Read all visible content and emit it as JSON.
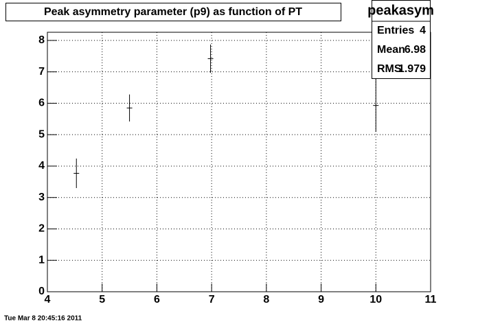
{
  "chart_data": {
    "type": "errorbar",
    "title": "Peak asymmetry parameter (p9) as function of PT",
    "x": [
      4.53,
      5.5,
      6.98,
      10.0
    ],
    "values": [
      3.77,
      5.85,
      7.42,
      5.93
    ],
    "errors": [
      0.47,
      0.43,
      0.45,
      0.84
    ],
    "color": "#000000",
    "xlim": [
      4,
      11
    ],
    "xticks": [
      4,
      5,
      6,
      7,
      8,
      9,
      10,
      11
    ],
    "ylim": [
      0,
      8.26
    ],
    "yticks": [
      0,
      1,
      2,
      3,
      4,
      5,
      6,
      7,
      8
    ],
    "grid": true,
    "stats": {
      "title": "peakasym",
      "entries": [
        {
          "label": "Entries",
          "value": 4
        },
        {
          "label": "Mean",
          "value": 6.98
        },
        {
          "label": "RMS",
          "value": 1.979
        }
      ]
    }
  },
  "footer": "Tue Mar  8 20:45:16 2011"
}
